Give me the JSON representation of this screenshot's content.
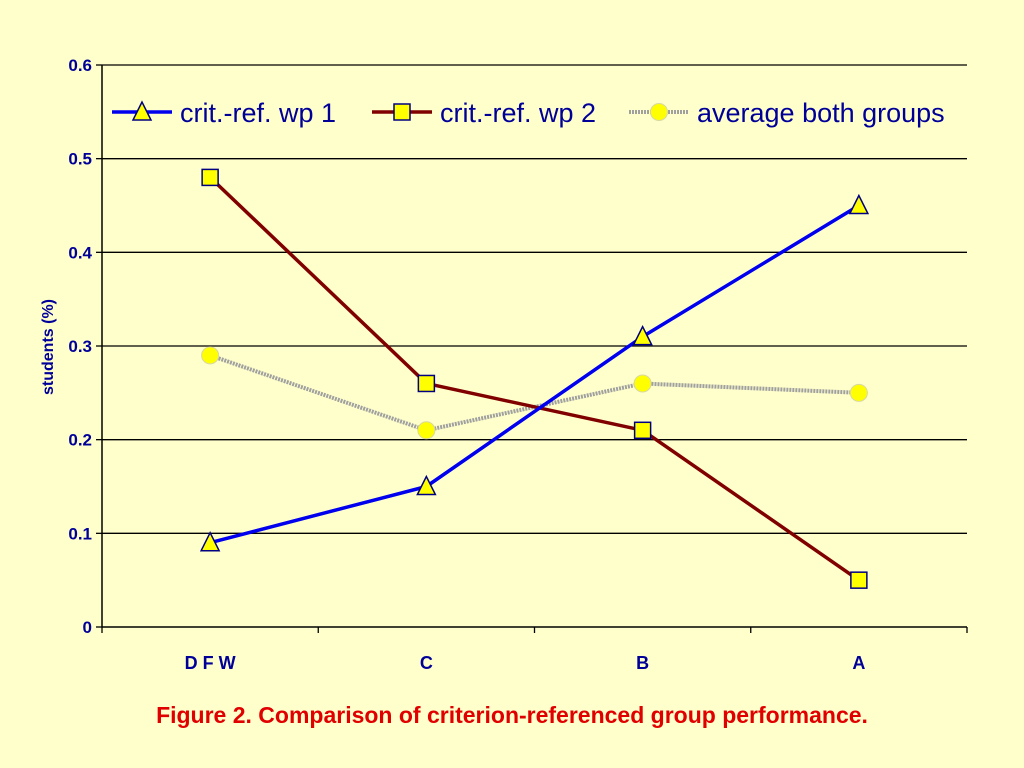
{
  "caption": "Figure 2. Comparison of criterion-referenced group performance.",
  "colors": {
    "background": "#FFFFCC",
    "text": "#000099",
    "caption": "#E00000",
    "marker_fill": "#FFFF00"
  },
  "chart_data": {
    "type": "line",
    "title": "",
    "xlabel": "",
    "ylabel": "students (%)",
    "categories": [
      "D F W",
      "C",
      "B",
      "A"
    ],
    "ylim": [
      0,
      0.6
    ],
    "yticks": [
      "0",
      "0.1",
      "0.2",
      "0.3",
      "0.4",
      "0.5",
      "0.6"
    ],
    "grid": true,
    "legend_position": "top",
    "series": [
      {
        "name": "crit.-ref. wp 1",
        "values": [
          0.09,
          0.15,
          0.31,
          0.45
        ],
        "color": "#0000EE",
        "marker": "triangle",
        "dashed": false
      },
      {
        "name": "crit.-ref. wp 2",
        "values": [
          0.48,
          0.26,
          0.21,
          0.05
        ],
        "color": "#800000",
        "marker": "square",
        "dashed": false
      },
      {
        "name": "average both groups",
        "values": [
          0.29,
          0.21,
          0.26,
          0.25
        ],
        "color": "#A0A0A0",
        "marker": "circle",
        "dashed": true
      }
    ]
  }
}
